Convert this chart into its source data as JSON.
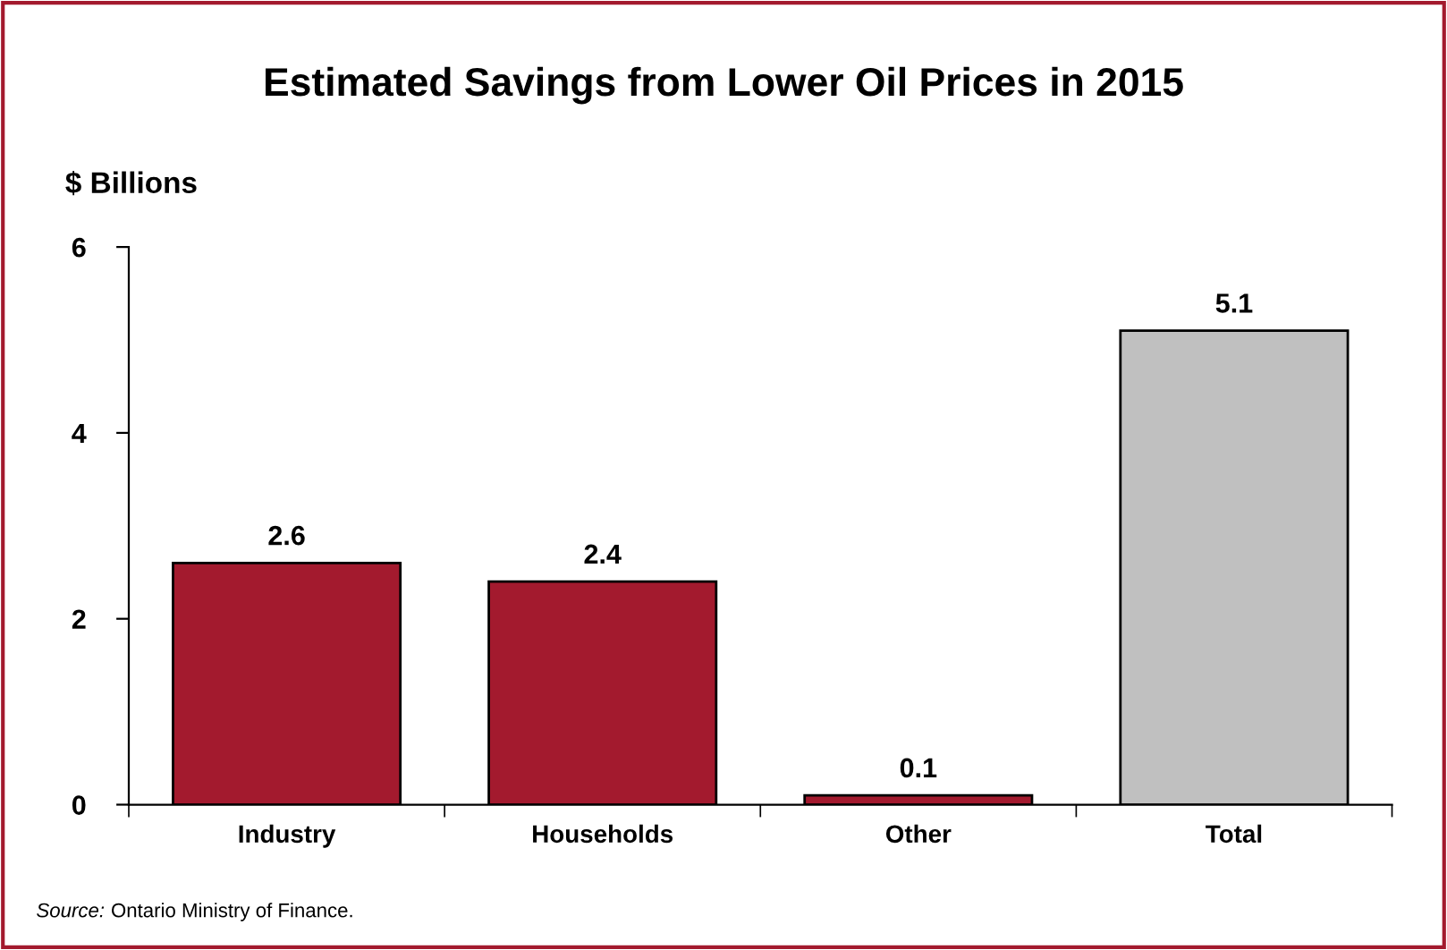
{
  "chart_data": {
    "type": "bar",
    "title": "Estimated Savings from Lower Oil Prices in 2015",
    "ylabel": "$ Billions",
    "categories": [
      "Industry",
      "Households",
      "Other",
      "Total"
    ],
    "values": [
      2.6,
      2.4,
      0.1,
      5.1
    ],
    "colors": [
      "#a31a2e",
      "#a31a2e",
      "#a31a2e",
      "#c0c0c0"
    ],
    "ylim": [
      0,
      6
    ],
    "yticks": [
      0,
      2,
      4,
      6
    ],
    "grid": false,
    "data_labels": true,
    "annotations": [
      "Source: Ontario Ministry of Finance."
    ]
  }
}
